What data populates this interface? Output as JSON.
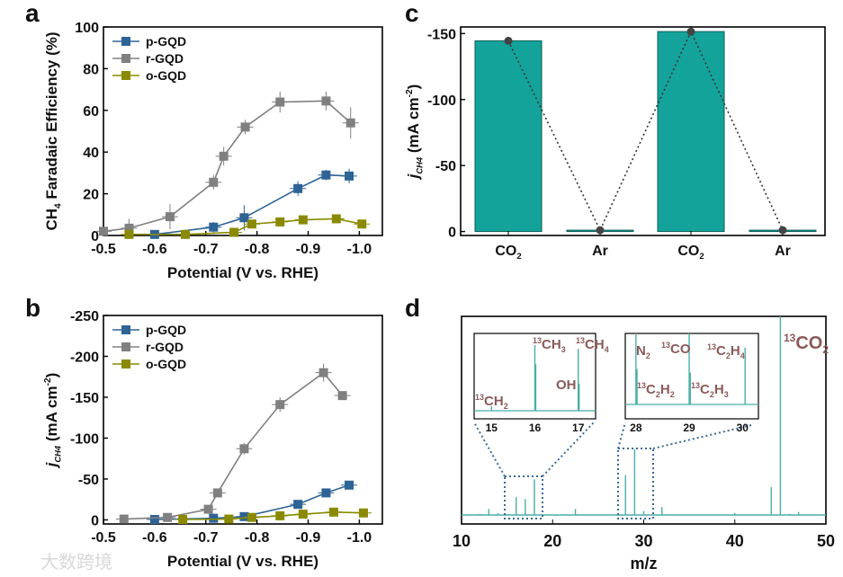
{
  "watermark": "大数跨境",
  "chart_data": [
    {
      "panel": "a",
      "type": "line",
      "xlabel": "Potential (V vs. RHE)",
      "ylabel_parts": [
        [
          "n",
          "CH"
        ],
        [
          "sub",
          "4"
        ],
        [
          "n",
          " Faradaic Efficiency (%)"
        ]
      ],
      "xlim": [
        -0.5,
        -1.045
      ],
      "ylim": [
        0,
        100
      ],
      "xticks": [
        -0.5,
        -0.6,
        -0.7,
        -0.8,
        -0.9,
        -1.0
      ],
      "xtick_labels": [
        "-0.5",
        "-0.6",
        "-0.7",
        "-0.8",
        "-0.9",
        "-1.0"
      ],
      "yticks": [
        0,
        20,
        40,
        60,
        80,
        100
      ],
      "ytick_labels": [
        "0",
        "20",
        "40",
        "60",
        "80",
        "100"
      ],
      "legend": "top-left",
      "series": [
        {
          "name": "p-GQD",
          "color": "#2e6396",
          "x": [
            -0.6,
            -0.715,
            -0.775,
            -0.88,
            -0.935,
            -0.98
          ],
          "y": [
            0.5,
            4,
            8.5,
            22.5,
            29,
            28.5
          ],
          "yerr": [
            0.5,
            2.5,
            6,
            3.5,
            2.5,
            3.5
          ]
        },
        {
          "name": "r-GQD",
          "color": "#808080",
          "x": [
            -0.5,
            -0.55,
            -0.63,
            -0.715,
            -0.735,
            -0.777,
            -0.845,
            -0.935,
            -0.983
          ],
          "y": [
            2,
            3.5,
            9,
            25.5,
            38,
            52,
            64,
            64.5,
            54
          ],
          "yerr": [
            0,
            4.5,
            6,
            3.5,
            4.5,
            3.5,
            5,
            4.5,
            7.5
          ]
        },
        {
          "name": "o-GQD",
          "color": "#8a8a00",
          "x": [
            -0.55,
            -0.66,
            -0.755,
            -0.79,
            -0.845,
            -0.89,
            -0.955,
            -1.005
          ],
          "y": [
            0.5,
            0.5,
            1.5,
            5.5,
            6.5,
            7.5,
            8,
            5.5
          ],
          "yerr": [
            0.5,
            0.5,
            1,
            1,
            1,
            1,
            1,
            1
          ]
        }
      ]
    },
    {
      "panel": "b",
      "type": "line",
      "xlabel": "Potential (V vs. RHE)",
      "ylabel_parts": [
        [
          "i",
          "j"
        ],
        [
          "isub",
          "CH4"
        ],
        [
          "n",
          " (mA cm"
        ],
        [
          "sup",
          "-2"
        ],
        [
          "n",
          ")"
        ]
      ],
      "xlim": [
        -0.5,
        -1.045
      ],
      "ylim": [
        5,
        -250
      ],
      "xticks": [
        -0.5,
        -0.6,
        -0.7,
        -0.8,
        -0.9,
        -1.0
      ],
      "xtick_labels": [
        "-0.5",
        "-0.6",
        "-0.7",
        "-0.8",
        "-0.9",
        "-1.0"
      ],
      "yticks": [
        0,
        -50,
        -100,
        -150,
        -200,
        -250
      ],
      "ytick_labels": [
        "0",
        "-50",
        "-100",
        "-150",
        "-200",
        "-250"
      ],
      "legend": "top-left",
      "series": [
        {
          "name": "p-GQD",
          "color": "#2e6396",
          "x": [
            -0.6,
            -0.715,
            -0.775,
            -0.88,
            -0.935,
            -0.98
          ],
          "y": [
            -0.5,
            -2,
            -4,
            -19,
            -33,
            -42.5
          ],
          "yerr": [
            1,
            1,
            1,
            1,
            2,
            2
          ]
        },
        {
          "name": "r-GQD",
          "color": "#808080",
          "x": [
            -0.54,
            -0.625,
            -0.705,
            -0.723,
            -0.775,
            -0.845,
            -0.93,
            -0.967
          ],
          "y": [
            -1,
            -3,
            -13,
            -33,
            -87,
            -141,
            -180,
            -152
          ],
          "yerr": [
            1,
            2,
            2,
            3,
            7,
            9,
            11,
            2
          ]
        },
        {
          "name": "o-GQD",
          "color": "#8a8a00",
          "x": [
            -0.655,
            -0.745,
            -0.79,
            -0.845,
            -0.89,
            -0.95,
            -1.008
          ],
          "y": [
            -0.5,
            -1,
            -3,
            -5,
            -7,
            -9.5,
            -8.5
          ],
          "yerr": [
            1,
            1,
            1,
            1,
            1,
            1,
            1
          ]
        }
      ]
    },
    {
      "panel": "c",
      "type": "bar",
      "ylabel_parts": [
        [
          "i",
          "j"
        ],
        [
          "isub",
          "CH4"
        ],
        [
          "n",
          " (mA cm"
        ],
        [
          "sup",
          "-2"
        ],
        [
          "n",
          ")"
        ]
      ],
      "categories": [
        [
          [
            "n",
            "CO"
          ],
          [
            "sub",
            "2"
          ]
        ],
        [
          [
            "n",
            "Ar"
          ]
        ],
        [
          [
            "n",
            "CO"
          ],
          [
            "sub",
            "2"
          ]
        ],
        [
          [
            "n",
            "Ar"
          ]
        ]
      ],
      "values": [
        -144.5,
        -1,
        -151.5,
        -1
      ],
      "ylim": [
        3,
        -155
      ],
      "yticks": [
        0,
        -50,
        -100,
        -150
      ],
      "ytick_labels": [
        "0",
        "-50",
        "-100",
        "-150"
      ],
      "bar_color": "#14a39a",
      "connector": "dotted line through bar tops"
    },
    {
      "panel": "d",
      "type": "line",
      "xlabel": "m/z",
      "xlim": [
        10,
        50
      ],
      "xticks": [
        10,
        20,
        30,
        40,
        50
      ],
      "xtick_labels": [
        "10",
        "20",
        "30",
        "40",
        "50"
      ],
      "line_color": "#4aaea6",
      "peaks": {
        "mz": [
          12,
          13,
          14,
          15,
          16,
          17,
          18,
          22.5,
          28,
          29,
          30,
          32,
          40,
          44,
          45,
          46,
          47
        ],
        "relative_intensity": [
          0.5,
          3,
          1,
          0.5,
          9,
          8,
          18,
          3,
          20,
          33,
          2,
          4,
          1,
          14,
          100,
          0.5,
          1.5
        ]
      },
      "peak_label_parts": [
        [
          "sup",
          "13"
        ],
        [
          "n",
          "CO"
        ],
        [
          "sub",
          "2"
        ]
      ],
      "insets": [
        {
          "xlim": [
            14.6,
            17.4
          ],
          "xticks": [
            15,
            16,
            17
          ],
          "xtick_labels": [
            "15",
            "16",
            "17"
          ],
          "peaks": {
            "mz": [
              15,
              16,
              16.02,
              17,
              17.02
            ],
            "relative_intensity": [
              6,
              85,
              60,
              80,
              35
            ]
          },
          "labels": [
            {
              "parts": [
                [
                  "sup",
                  "13"
                ],
                [
                  "n",
                  "CH"
                ],
                [
                  "sub",
                  "2"
                ]
              ]
            },
            {
              "parts": [
                [
                  "sup",
                  "13"
                ],
                [
                  "n",
                  "CH"
                ],
                [
                  "sub",
                  "3"
                ]
              ]
            },
            {
              "parts": [
                [
                  "sup",
                  "13"
                ],
                [
                  "n",
                  "CH"
                ],
                [
                  "sub",
                  "4"
                ]
              ]
            },
            {
              "parts": [
                [
                  "n",
                  "OH"
                ]
              ]
            }
          ]
        },
        {
          "xlim": [
            27.8,
            30.3
          ],
          "xticks": [
            28,
            29,
            30
          ],
          "xtick_labels": [
            "28",
            "29",
            "30"
          ],
          "peaks": {
            "mz": [
              28,
              28.02,
              29,
              29.02,
              30.05
            ],
            "relative_intensity": [
              100,
              50,
              100,
              45,
              80
            ]
          },
          "labels": [
            {
              "parts": [
                [
                  "n",
                  "N"
                ],
                [
                  "sub",
                  "2"
                ]
              ]
            },
            {
              "parts": [
                [
                  "sup",
                  "13"
                ],
                [
                  "n",
                  "CO"
                ]
              ]
            },
            {
              "parts": [
                [
                  "sup",
                  "13"
                ],
                [
                  "n",
                  "C"
                ],
                [
                  "sub",
                  "2"
                ],
                [
                  "n",
                  "H"
                ],
                [
                  "sub",
                  "4"
                ]
              ]
            },
            {
              "parts": [
                [
                  "sup",
                  "13"
                ],
                [
                  "n",
                  "C"
                ],
                [
                  "sub",
                  "2"
                ],
                [
                  "n",
                  "H"
                ],
                [
                  "sub",
                  "2"
                ]
              ]
            },
            {
              "parts": [
                [
                  "sup",
                  "13"
                ],
                [
                  "n",
                  "C"
                ],
                [
                  "sub",
                  "2"
                ],
                [
                  "n",
                  "H"
                ],
                [
                  "sub",
                  "3"
                ]
              ]
            }
          ]
        }
      ]
    }
  ]
}
